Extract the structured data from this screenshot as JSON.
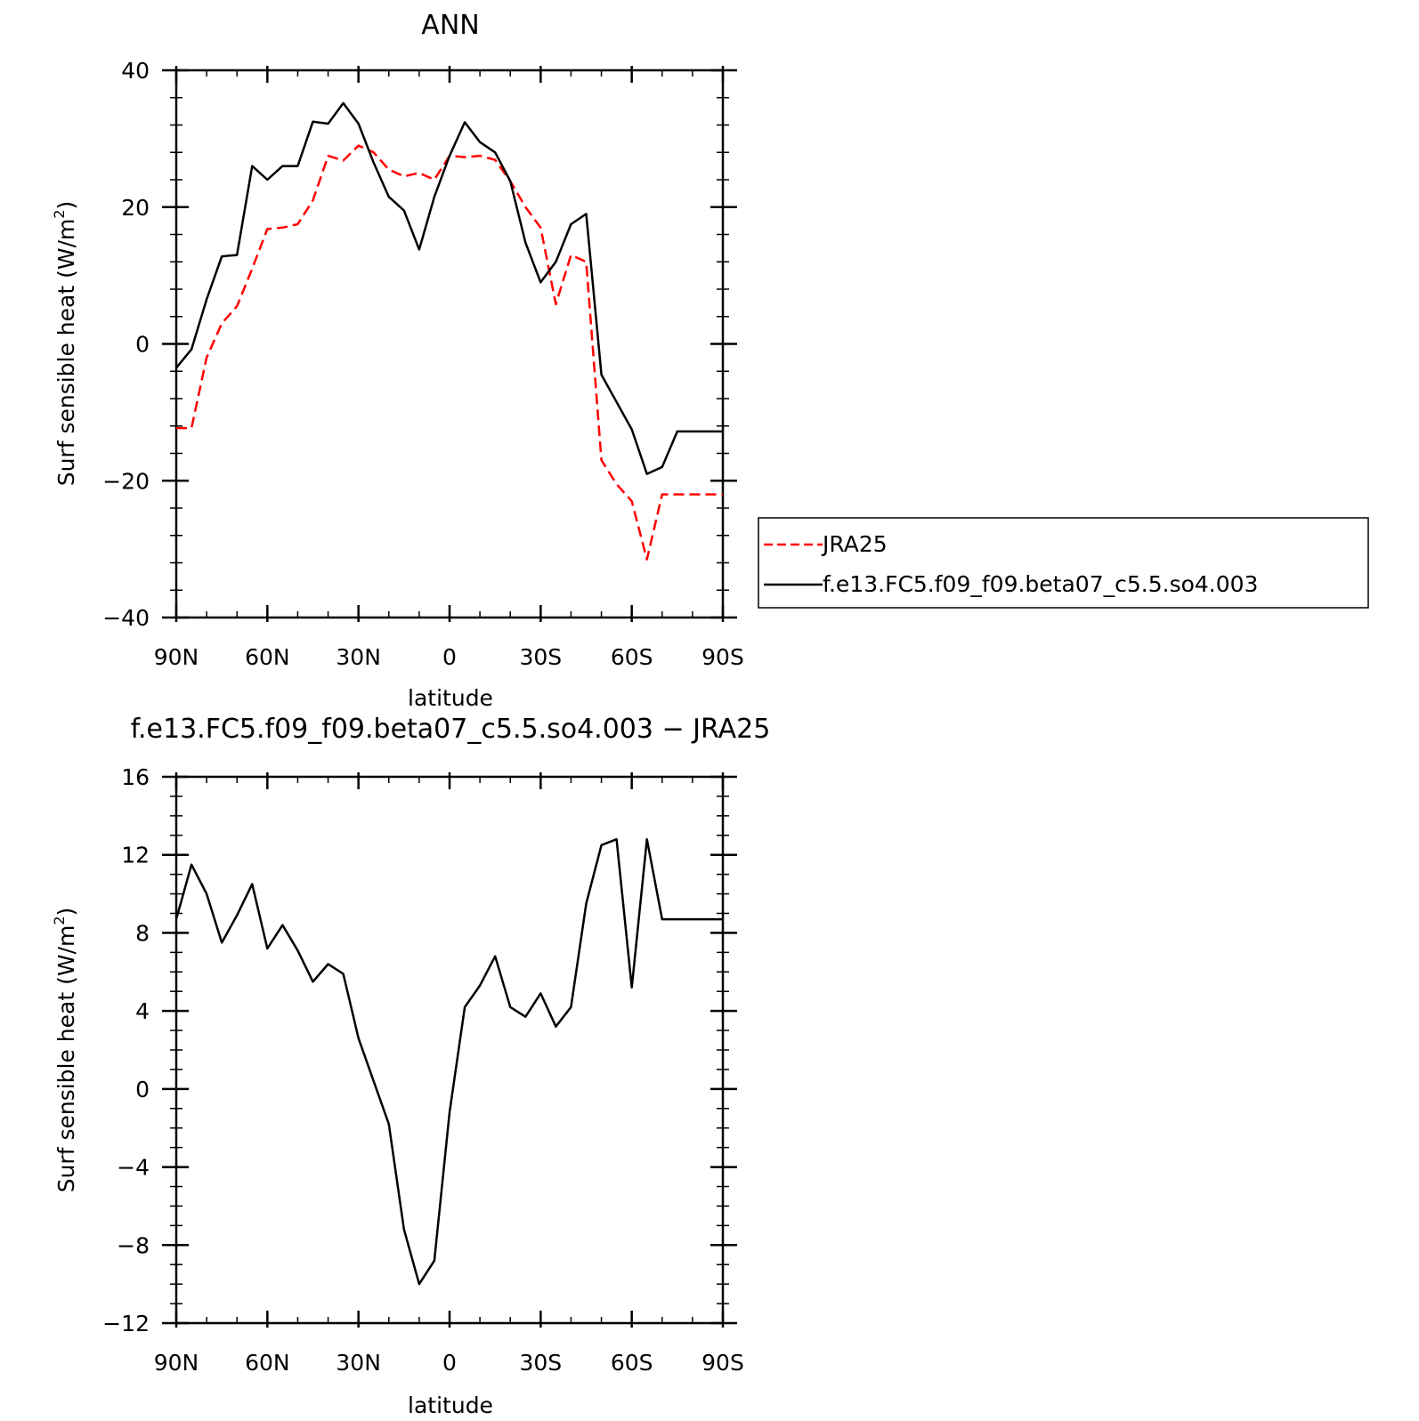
{
  "chart_data": [
    {
      "type": "line",
      "title": "ANN",
      "xlabel": "latitude",
      "ylabel": "Surf sensible heat (W/m",
      "ylabel_sup": "2",
      "ylabel_close": ")",
      "xlim": [
        90,
        -90
      ],
      "ylim": [
        -40,
        40
      ],
      "xticks": [
        90,
        60,
        30,
        0,
        -30,
        -60,
        -90
      ],
      "xtick_labels": [
        "90N",
        "60N",
        "30N",
        "0",
        "30S",
        "60S",
        "90S"
      ],
      "yticks": [
        -40,
        -20,
        0,
        20,
        40
      ],
      "ytick_labels": [
        "−40",
        "−20",
        "0",
        "20",
        "40"
      ],
      "grid": false,
      "legend_position": "right",
      "series": [
        {
          "name": "JRA25",
          "color": "#ff0000",
          "dash": "dashed",
          "x": [
            90,
            85,
            80,
            75,
            70,
            65,
            60,
            55,
            50,
            45,
            40,
            35,
            30,
            25,
            20,
            15,
            10,
            5,
            0,
            -5,
            -10,
            -15,
            -20,
            -25,
            -30,
            -35,
            -40,
            -45,
            -50,
            -55,
            -60,
            -65,
            -70,
            -75,
            -80,
            -85,
            -90
          ],
          "y": [
            -12.3,
            -12.3,
            -2,
            3,
            5.5,
            11,
            16.8,
            17,
            17.5,
            21,
            27.5,
            26.8,
            29,
            28,
            25.5,
            24.5,
            25,
            24,
            27.5,
            27.3,
            27.5,
            26.9,
            23.8,
            20,
            17,
            5.8,
            13,
            12,
            -17,
            -20.5,
            -23,
            -31.5,
            -22,
            -22,
            -22,
            -22,
            -22
          ]
        },
        {
          "name": "f.e13.FC5.f09_f09.beta07_c5.5.so4.003",
          "color": "#000000",
          "dash": "solid",
          "x": [
            90,
            85,
            80,
            75,
            70,
            65,
            60,
            55,
            50,
            45,
            40,
            35,
            30,
            25,
            20,
            15,
            10,
            5,
            0,
            -5,
            -10,
            -15,
            -20,
            -25,
            -30,
            -35,
            -40,
            -45,
            -50,
            -55,
            -60,
            -65,
            -70,
            -75,
            -80,
            -85,
            -90
          ],
          "y": [
            -3.5,
            -0.8,
            6.5,
            12.8,
            13,
            26,
            24,
            26,
            26,
            32.5,
            32.2,
            35.2,
            32.2,
            26.5,
            21.5,
            19.5,
            13.8,
            21.5,
            27.5,
            32.4,
            29.5,
            28,
            23.8,
            14.8,
            9,
            12,
            17.5,
            19,
            -4.5,
            -8.5,
            -12.5,
            -19,
            -18,
            -12.8,
            -12.8,
            -12.8,
            -12.8
          ]
        }
      ]
    },
    {
      "type": "line",
      "title": "f.e13.FC5.f09_f09.beta07_c5.5.so4.003 − JRA25",
      "xlabel": "latitude",
      "ylabel": "Surf sensible heat (W/m",
      "ylabel_sup": "2",
      "ylabel_close": ")",
      "xlim": [
        90,
        -90
      ],
      "ylim": [
        -12,
        16
      ],
      "xticks": [
        90,
        60,
        30,
        0,
        -30,
        -60,
        -90
      ],
      "xtick_labels": [
        "90N",
        "60N",
        "30N",
        "0",
        "30S",
        "60S",
        "90S"
      ],
      "yticks": [
        -12,
        -8,
        -4,
        0,
        4,
        8,
        12,
        16
      ],
      "ytick_labels": [
        "−12",
        "−8",
        "−4",
        "0",
        "4",
        "8",
        "12",
        "16"
      ],
      "grid": false,
      "series": [
        {
          "color": "#000000",
          "dash": "solid",
          "x": [
            90,
            85,
            80,
            75,
            70,
            65,
            60,
            55,
            50,
            45,
            40,
            35,
            30,
            25,
            20,
            15,
            10,
            5,
            0,
            -5,
            -10,
            -15,
            -20,
            -25,
            -30,
            -35,
            -40,
            -45,
            -50,
            -55,
            -60,
            -65,
            -70,
            -75,
            -80,
            -85,
            -90
          ],
          "y": [
            8.7,
            11.5,
            10,
            7.5,
            8.9,
            10.5,
            7.2,
            8.4,
            7.1,
            5.5,
            6.4,
            5.9,
            2.6,
            0.4,
            -1.8,
            -7.2,
            -10,
            -8.8,
            -1.2,
            4.2,
            5.3,
            6.8,
            4.2,
            3.7,
            4.9,
            3.2,
            4.2,
            9.5,
            12.5,
            12.8,
            5.2,
            12.8,
            8.7,
            8.7,
            8.7,
            8.7,
            8.7
          ]
        }
      ]
    }
  ]
}
